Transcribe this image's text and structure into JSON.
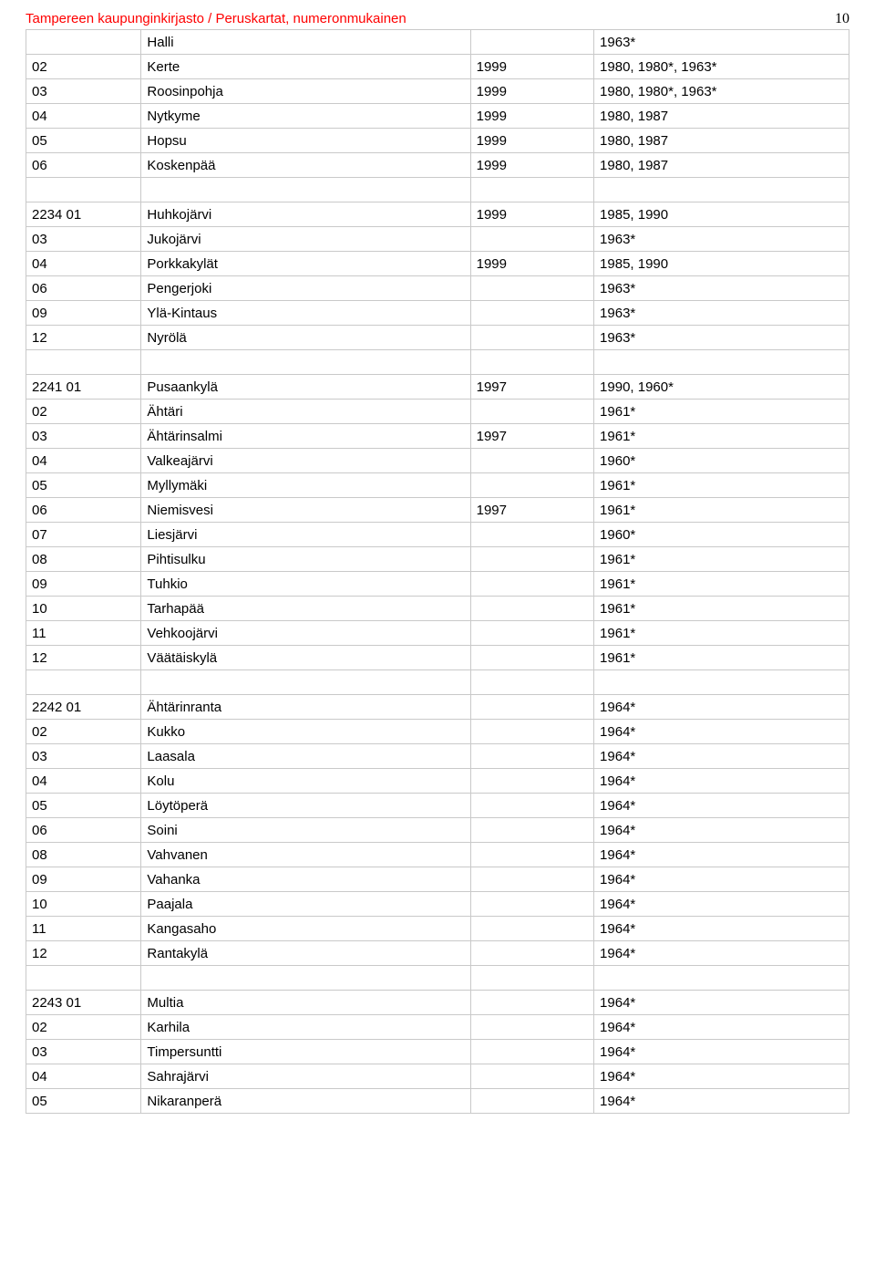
{
  "header": {
    "title": "Tampereen kaupunginkirjasto / Peruskartat, numeronmukainen",
    "page_number": "10"
  },
  "rows": [
    {
      "c1": "",
      "c2": "Halli",
      "c3": "",
      "c4": "1963*"
    },
    {
      "c1": "02",
      "c2": "Kerte",
      "c3": "1999",
      "c4": "1980, 1980*, 1963*"
    },
    {
      "c1": "03",
      "c2": "Roosinpohja",
      "c3": "1999",
      "c4": "1980, 1980*, 1963*"
    },
    {
      "c1": "04",
      "c2": "Nytkyme",
      "c3": "1999",
      "c4": "1980, 1987"
    },
    {
      "c1": "05",
      "c2": "Hopsu",
      "c3": "1999",
      "c4": "1980, 1987"
    },
    {
      "c1": "06",
      "c2": "Koskenpää",
      "c3": "1999",
      "c4": "1980, 1987"
    },
    {
      "blank": true
    },
    {
      "c1": "2234 01",
      "c2": "Huhkojärvi",
      "c3": "1999",
      "c4": "1985, 1990"
    },
    {
      "c1": "03",
      "c2": "Jukojärvi",
      "c3": "",
      "c4": "1963*"
    },
    {
      "c1": "04",
      "c2": "Porkkakylät",
      "c3": "1999",
      "c4": "1985, 1990"
    },
    {
      "c1": "06",
      "c2": "Pengerjoki",
      "c3": "",
      "c4": "1963*"
    },
    {
      "c1": "09",
      "c2": "Ylä-Kintaus",
      "c3": "",
      "c4": "1963*"
    },
    {
      "c1": "12",
      "c2": "Nyrölä",
      "c3": "",
      "c4": "1963*"
    },
    {
      "blank": true
    },
    {
      "c1": "2241 01",
      "c2": "Pusaankylä",
      "c3": "1997",
      "c4": "1990, 1960*"
    },
    {
      "c1": "02",
      "c2": "Ähtäri",
      "c3": "",
      "c4": "1961*"
    },
    {
      "c1": "03",
      "c2": "Ähtärinsalmi",
      "c3": "1997",
      "c4": "1961*"
    },
    {
      "c1": "04",
      "c2": "Valkeajärvi",
      "c3": "",
      "c4": "1960*"
    },
    {
      "c1": "05",
      "c2": "Myllymäki",
      "c3": "",
      "c4": "1961*"
    },
    {
      "c1": "06",
      "c2": "Niemisvesi",
      "c3": "1997",
      "c4": "1961*"
    },
    {
      "c1": "07",
      "c2": "Liesjärvi",
      "c3": "",
      "c4": "1960*"
    },
    {
      "c1": "08",
      "c2": "Pihtisulku",
      "c3": "",
      "c4": "1961*"
    },
    {
      "c1": "09",
      "c2": "Tuhkio",
      "c3": "",
      "c4": "1961*"
    },
    {
      "c1": "10",
      "c2": "Tarhapää",
      "c3": "",
      "c4": "1961*"
    },
    {
      "c1": "11",
      "c2": "Vehkoojärvi",
      "c3": "",
      "c4": "1961*"
    },
    {
      "c1": "12",
      "c2": "Väätäiskylä",
      "c3": "",
      "c4": "1961*"
    },
    {
      "blank": true
    },
    {
      "c1": "2242 01",
      "c2": "Ähtärinranta",
      "c3": "",
      "c4": "1964*"
    },
    {
      "c1": "02",
      "c2": "Kukko",
      "c3": "",
      "c4": "1964*"
    },
    {
      "c1": "03",
      "c2": "Laasala",
      "c3": "",
      "c4": "1964*"
    },
    {
      "c1": "04",
      "c2": "Kolu",
      "c3": "",
      "c4": "1964*"
    },
    {
      "c1": "05",
      "c2": "Löytöperä",
      "c3": "",
      "c4": "1964*"
    },
    {
      "c1": "06",
      "c2": "Soini",
      "c3": "",
      "c4": "1964*"
    },
    {
      "c1": "08",
      "c2": "Vahvanen",
      "c3": "",
      "c4": "1964*"
    },
    {
      "c1": "09",
      "c2": "Vahanka",
      "c3": "",
      "c4": "1964*"
    },
    {
      "c1": "10",
      "c2": "Paajala",
      "c3": "",
      "c4": "1964*"
    },
    {
      "c1": "11",
      "c2": "Kangasaho",
      "c3": "",
      "c4": "1964*"
    },
    {
      "c1": "12",
      "c2": "Rantakylä",
      "c3": "",
      "c4": "1964*"
    },
    {
      "blank": true
    },
    {
      "c1": "2243 01",
      "c2": "Multia",
      "c3": "",
      "c4": "1964*"
    },
    {
      "c1": "02",
      "c2": "Karhila",
      "c3": "",
      "c4": "1964*"
    },
    {
      "c1": "03",
      "c2": "Timpersuntti",
      "c3": "",
      "c4": "1964*"
    },
    {
      "c1": "04",
      "c2": "Sahrajärvi",
      "c3": "",
      "c4": "1964*"
    },
    {
      "c1": "05",
      "c2": "Nikaranperä",
      "c3": "",
      "c4": "1964*"
    }
  ]
}
